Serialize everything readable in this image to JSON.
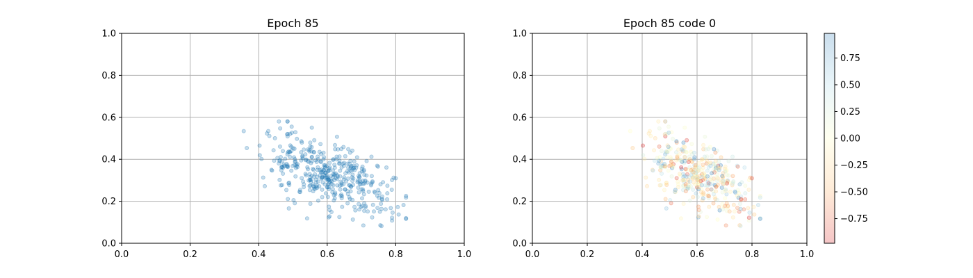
{
  "chart_data": [
    {
      "type": "scatter",
      "title": "Epoch 85",
      "xlim": [
        0,
        1
      ],
      "ylim": [
        0,
        1
      ],
      "xticks": [
        "0.0",
        "0.2",
        "0.4",
        "0.6",
        "0.8",
        "1.0"
      ],
      "yticks": [
        "0.0",
        "0.2",
        "0.4",
        "0.6",
        "0.8",
        "1.0"
      ],
      "grid": true,
      "color": "#1f77b4",
      "alpha": 0.25,
      "points_generated": {
        "count": 420,
        "x_range": [
          0.33,
          0.83
        ],
        "y_range": [
          0.05,
          0.58
        ],
        "center": [
          0.6,
          0.33
        ],
        "trend": "y decreases as x increases"
      }
    },
    {
      "type": "scatter",
      "title": "Epoch 85 code 0",
      "xlim": [
        0,
        1
      ],
      "ylim": [
        0,
        1
      ],
      "xticks": [
        "0.0",
        "0.2",
        "0.4",
        "0.6",
        "0.8",
        "1.0"
      ],
      "yticks": [
        "0.0",
        "0.2",
        "0.4",
        "0.6",
        "0.8",
        "1.0"
      ],
      "grid": true,
      "colormap": "RdBu",
      "alpha": 0.25,
      "colorbar": {
        "range": [
          -0.98,
          0.98
        ],
        "ticks": [
          -0.75,
          -0.5,
          -0.25,
          0.0,
          0.25,
          0.5,
          0.75
        ],
        "tick_labels": [
          "−0.75",
          "−0.50",
          "−0.25",
          "0.00",
          "0.25",
          "0.50",
          "0.75"
        ],
        "stops": [
          "#d7191c",
          "#fdae61",
          "#ffffbf",
          "#abd9e9",
          "#2c7bb6"
        ]
      }
    }
  ]
}
